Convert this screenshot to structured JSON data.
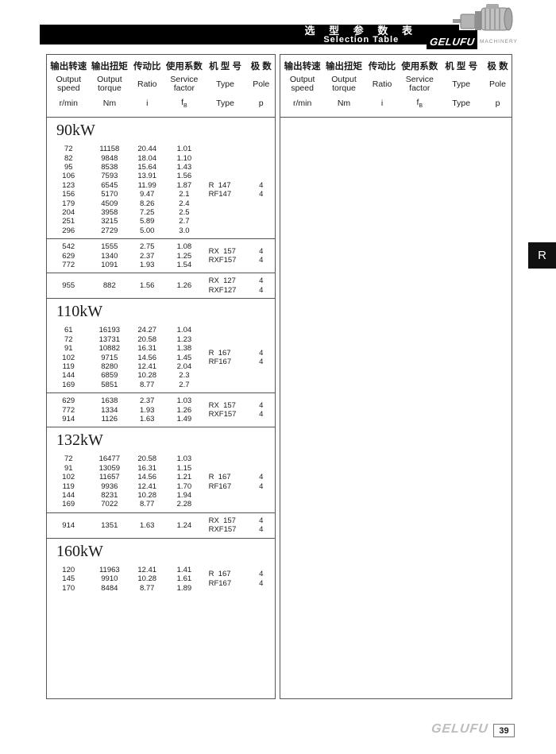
{
  "header": {
    "title_cn": "选 型 参 数 表",
    "title_en": "Selection Table",
    "brand": "GELUFU",
    "brand_sub": "MACHINERY",
    "motor_icon": "gear-motor-photo"
  },
  "side_tab": "R",
  "footer": {
    "brand": "GELUFU",
    "page": "39"
  },
  "columns": [
    {
      "cn": "输出转速",
      "en": "Output speed",
      "unit": "r/min"
    },
    {
      "cn": "输出扭矩",
      "en": "Output torque",
      "unit": "Nm"
    },
    {
      "cn": "传动比",
      "en": "Ratio",
      "unit": "i"
    },
    {
      "cn": "使用系数",
      "en": "Service factor",
      "unit": "f",
      "unit_sub": "B"
    },
    {
      "cn": "机 型 号",
      "en": "Type",
      "unit": "Type"
    },
    {
      "cn": "极 数",
      "en": "Pole",
      "unit": "p"
    }
  ],
  "sections": [
    {
      "power": "90kW",
      "blocks": [
        {
          "rows": [
            [
              "72",
              "11158",
              "20.44",
              "1.01"
            ],
            [
              "82",
              "9848",
              "18.04",
              "1.10"
            ],
            [
              "95",
              "8538",
              "15.64",
              "1.43"
            ],
            [
              "106",
              "7593",
              "13.91",
              "1.56"
            ],
            [
              "123",
              "6545",
              "11.99",
              "1.87"
            ],
            [
              "156",
              "5170",
              "9.47",
              "2.1"
            ],
            [
              "179",
              "4509",
              "8.26",
              "2.4"
            ],
            [
              "204",
              "3958",
              "7.25",
              "2.5"
            ],
            [
              "251",
              "3215",
              "5.89",
              "2.7"
            ],
            [
              "296",
              "2729",
              "5.00",
              "3.0"
            ]
          ],
          "types": [
            "R  147",
            "RF147"
          ],
          "poles": [
            "4",
            "4"
          ]
        },
        {
          "rows": [
            [
              "542",
              "1555",
              "2.75",
              "1.08"
            ],
            [
              "629",
              "1340",
              "2.37",
              "1.25"
            ],
            [
              "772",
              "1091",
              "1.93",
              "1.54"
            ]
          ],
          "types": [
            "RX  157",
            "RXF157"
          ],
          "poles": [
            "4",
            "4"
          ]
        },
        {
          "rows": [
            [
              "955",
              "882",
              "1.56",
              "1.26"
            ]
          ],
          "types": [
            "RX  127",
            "RXF127"
          ],
          "poles": [
            "4",
            "4"
          ]
        }
      ]
    },
    {
      "power": "110kW",
      "blocks": [
        {
          "rows": [
            [
              "61",
              "16193",
              "24.27",
              "1.04"
            ],
            [
              "72",
              "13731",
              "20.58",
              "1.23"
            ],
            [
              "91",
              "10882",
              "16.31",
              "1.38"
            ],
            [
              "102",
              "9715",
              "14.56",
              "1.45"
            ],
            [
              "119",
              "8280",
              "12.41",
              "2.04"
            ],
            [
              "144",
              "6859",
              "10.28",
              "2.3"
            ],
            [
              "169",
              "5851",
              "8.77",
              "2.7"
            ]
          ],
          "types": [
            "R  167",
            "RF167"
          ],
          "poles": [
            "4",
            "4"
          ]
        },
        {
          "rows": [
            [
              "629",
              "1638",
              "2.37",
              "1.03"
            ],
            [
              "772",
              "1334",
              "1.93",
              "1.26"
            ],
            [
              "914",
              "1126",
              "1.63",
              "1.49"
            ]
          ],
          "types": [
            "RX  157",
            "RXF157"
          ],
          "poles": [
            "4",
            "4"
          ]
        }
      ]
    },
    {
      "power": "132kW",
      "blocks": [
        {
          "rows": [
            [
              "72",
              "16477",
              "20.58",
              "1.03"
            ],
            [
              "91",
              "13059",
              "16.31",
              "1.15"
            ],
            [
              "102",
              "11657",
              "14.56",
              "1.21"
            ],
            [
              "119",
              "9936",
              "12.41",
              "1.70"
            ],
            [
              "144",
              "8231",
              "10.28",
              "1.94"
            ],
            [
              "169",
              "7022",
              "8.77",
              "2.28"
            ]
          ],
          "types": [
            "R  167",
            "RF167"
          ],
          "poles": [
            "4",
            "4"
          ]
        },
        {
          "rows": [
            [
              "914",
              "1351",
              "1.63",
              "1.24"
            ]
          ],
          "types": [
            "RX  157",
            "RXF157"
          ],
          "poles": [
            "4",
            "4"
          ]
        }
      ]
    },
    {
      "power": "160kW",
      "blocks": [
        {
          "rows": [
            [
              "120",
              "11963",
              "12.41",
              "1.41"
            ],
            [
              "145",
              "9910",
              "10.28",
              "1.61"
            ],
            [
              "170",
              "8484",
              "8.77",
              "1.89"
            ]
          ],
          "types": [
            "R  167",
            "RF167"
          ],
          "poles": [
            "4",
            "4"
          ]
        }
      ]
    }
  ]
}
